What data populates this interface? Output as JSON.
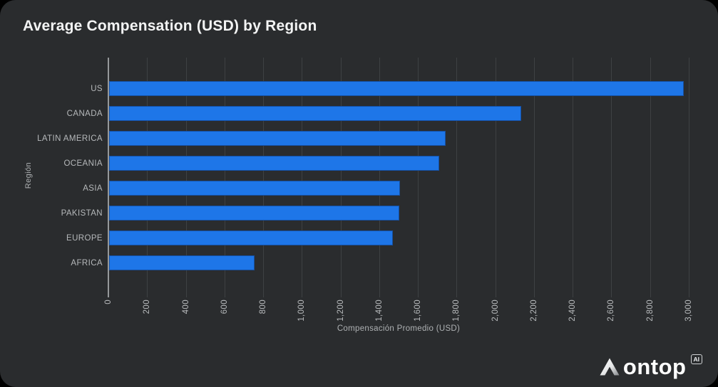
{
  "chart_data": {
    "type": "bar",
    "orientation": "horizontal",
    "title": "Average Compensation (USD) by Region",
    "xlabel": "Compensación Promedio (USD)",
    "ylabel": "Región",
    "categories": [
      "US",
      "CANADA",
      "LATIN AMERICA",
      "OCEANIA",
      "ASIA",
      "PAKISTAN",
      "EUROPE",
      "AFRICA"
    ],
    "values": [
      2970,
      2130,
      1740,
      1705,
      1505,
      1500,
      1465,
      750
    ],
    "xlim": [
      0,
      3000
    ],
    "xtick_values": [
      0,
      200,
      400,
      600,
      800,
      1000,
      1200,
      1400,
      1600,
      1800,
      2000,
      2200,
      2400,
      2600,
      2800,
      3000
    ],
    "xtick_labels": [
      "0",
      "200",
      "400",
      "600",
      "800",
      "1,000",
      "1,200",
      "1,400",
      "1,600",
      "1,800",
      "2,000",
      "2,200",
      "2,400",
      "2,600",
      "2,800",
      "3,000"
    ],
    "grid": true,
    "legend": false,
    "bar_color": "#1e76e8"
  },
  "colors": {
    "card_background": "#2a2c2e",
    "page_background": "#000000",
    "bar": "#1e76e8",
    "gridline": "#3e4143",
    "axis_line": "#95989a",
    "label_text": "#b6b9bb",
    "title_text": "#f3f4f4"
  },
  "footer": {
    "logo_text": "ontop",
    "logo_badge": "AI"
  }
}
